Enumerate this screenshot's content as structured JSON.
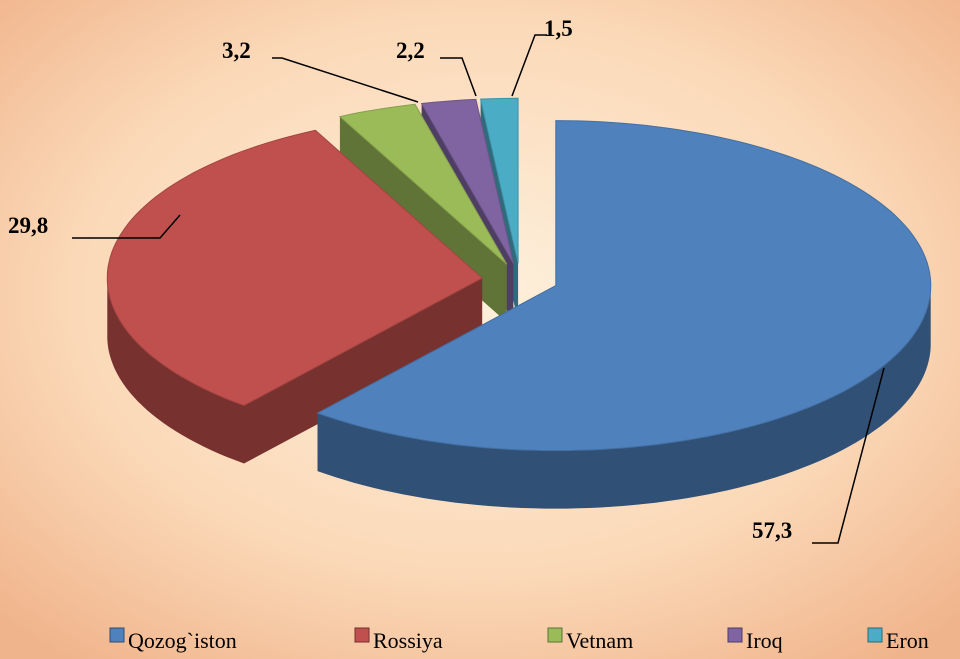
{
  "chart_data": {
    "type": "pie",
    "categories": [
      "Qozog`iston",
      "Rossiya",
      "Vetnam",
      "Iroq",
      "Eron"
    ],
    "values": [
      57.3,
      29.8,
      3.2,
      2.2,
      1.5
    ],
    "value_labels": [
      "57,3",
      "29,8",
      "3,2",
      "2,2",
      "1,5"
    ],
    "colors": [
      "#4f81bd",
      "#c0504d",
      "#9bbb59",
      "#8064a2",
      "#4bacc6"
    ],
    "legend": "bottom"
  }
}
